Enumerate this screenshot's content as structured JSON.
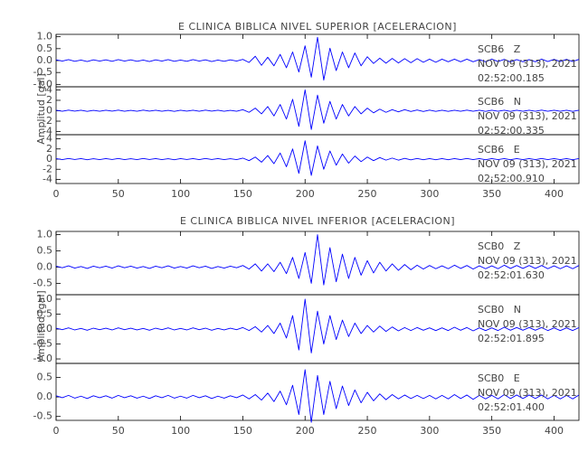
{
  "chart_data": [
    {
      "type": "line",
      "title": "E CLINICA BIBLICA NIVEL SUPERIOR [ACELERACION]",
      "ylabel": "Amplitud [gal]",
      "color": "#0000ff",
      "xlim": [
        0,
        420
      ],
      "xticks": [
        0,
        50,
        100,
        150,
        200,
        250,
        300,
        350,
        400
      ],
      "x": [
        0,
        5,
        10,
        15,
        20,
        25,
        30,
        35,
        40,
        45,
        50,
        55,
        60,
        65,
        70,
        75,
        80,
        85,
        90,
        95,
        100,
        105,
        110,
        115,
        120,
        125,
        130,
        135,
        140,
        145,
        150,
        155,
        160,
        165,
        170,
        175,
        180,
        185,
        190,
        195,
        200,
        205,
        210,
        215,
        220,
        225,
        230,
        235,
        240,
        245,
        250,
        255,
        260,
        265,
        270,
        275,
        280,
        285,
        290,
        295,
        300,
        305,
        310,
        315,
        320,
        325,
        330,
        335,
        340,
        345,
        350,
        355,
        360,
        365,
        370,
        375,
        380,
        385,
        390,
        395,
        400,
        405,
        410,
        415,
        420
      ],
      "panels": [
        {
          "station": "SCB6   Z",
          "date": "NOV 09 (313), 2021",
          "time": "02:52:00.185",
          "ylim": [
            -1.1,
            1.1
          ],
          "yticks": [
            {
              "value": -1,
              "label": "-1.0"
            },
            -0.5,
            {
              "value": 0,
              "label": "0.0"
            },
            0.5,
            {
              "value": 1,
              "label": "1.0"
            }
          ],
          "values": [
            0.03,
            -0.02,
            0.04,
            -0.03,
            0.02,
            -0.04,
            0.03,
            -0.02,
            0.03,
            -0.03,
            0.04,
            -0.02,
            0.03,
            -0.03,
            0.02,
            -0.04,
            0.03,
            -0.02,
            0.04,
            -0.03,
            0.02,
            -0.03,
            0.04,
            -0.02,
            0.03,
            -0.04,
            0.02,
            -0.03,
            0.03,
            -0.02,
            0.05,
            -0.08,
            0.18,
            -0.2,
            0.14,
            -0.22,
            0.26,
            -0.3,
            0.36,
            -0.48,
            0.62,
            -0.7,
            0.98,
            -0.82,
            0.52,
            -0.42,
            0.36,
            -0.3,
            0.32,
            -0.22,
            0.16,
            -0.12,
            0.1,
            -0.11,
            0.09,
            -0.1,
            0.08,
            -0.09,
            0.08,
            -0.07,
            0.06,
            -0.07,
            0.06,
            -0.05,
            0.06,
            -0.05,
            0.06,
            -0.05,
            0.04,
            -0.05,
            0.06,
            -0.04,
            0.05,
            -0.06,
            0.04,
            -0.05,
            0.04,
            -0.05,
            0.06,
            -0.04,
            0.05,
            -0.04,
            0.05,
            -0.04,
            0.05
          ]
        },
        {
          "station": "SCB6   N",
          "date": "NOV 09 (313), 2021",
          "time": "02:52:00.335",
          "ylim": [
            -4.6,
            4.6
          ],
          "yticks": [
            -4,
            -2,
            0,
            2,
            4
          ],
          "values": [
            0.1,
            -0.1,
            0.12,
            -0.08,
            0.1,
            -0.12,
            0.08,
            -0.1,
            0.1,
            -0.08,
            0.12,
            -0.1,
            0.08,
            -0.1,
            0.12,
            -0.08,
            0.1,
            -0.1,
            0.08,
            -0.12,
            0.1,
            -0.08,
            0.1,
            -0.1,
            0.12,
            -0.08,
            0.1,
            -0.1,
            0.08,
            -0.1,
            0.2,
            -0.3,
            0.5,
            -0.6,
            0.8,
            -1.0,
            1.2,
            -1.6,
            2.2,
            -3.0,
            4.0,
            -3.6,
            3.0,
            -2.4,
            1.8,
            -1.6,
            1.2,
            -1.0,
            0.8,
            -0.6,
            0.5,
            -0.4,
            0.3,
            -0.3,
            0.2,
            -0.2,
            0.2,
            -0.15,
            0.15,
            -0.15,
            0.12,
            -0.12,
            0.1,
            -0.12,
            0.1,
            -0.1,
            0.12,
            -0.1,
            0.1,
            -0.12,
            0.1,
            -0.1,
            0.1,
            -0.12,
            0.1,
            -0.1,
            0.1,
            -0.1,
            0.12,
            -0.1,
            0.1,
            -0.1,
            0.1,
            -0.12,
            0.1
          ]
        },
        {
          "station": "SCB6   E",
          "date": "NOV 09 (313), 2021",
          "time": "02:52:00.910",
          "ylim": [
            -4.8,
            4.8
          ],
          "yticks": [
            -4,
            -2,
            0,
            2,
            4
          ],
          "values": [
            0.1,
            -0.1,
            0.12,
            -0.08,
            0.1,
            -0.12,
            0.08,
            -0.1,
            0.1,
            -0.08,
            0.12,
            -0.1,
            0.08,
            -0.1,
            0.12,
            -0.08,
            0.1,
            -0.1,
            0.08,
            -0.12,
            0.1,
            -0.08,
            0.1,
            -0.1,
            0.12,
            -0.08,
            0.1,
            -0.1,
            0.08,
            -0.1,
            0.2,
            -0.3,
            0.4,
            -0.6,
            0.7,
            -0.9,
            1.2,
            -1.5,
            2.0,
            -2.8,
            3.6,
            -3.2,
            2.6,
            -2.0,
            1.6,
            -1.2,
            1.0,
            -0.8,
            0.6,
            -0.5,
            0.4,
            -0.3,
            0.3,
            -0.2,
            0.2,
            -0.2,
            0.15,
            -0.15,
            0.12,
            -0.12,
            0.1,
            -0.12,
            0.1,
            -0.12,
            0.1,
            -0.1,
            0.12,
            -0.1,
            0.1,
            -0.12,
            0.1,
            -0.1,
            0.1,
            -0.12,
            0.1,
            -0.1,
            0.1,
            -0.1,
            0.12,
            -0.1,
            0.1,
            -0.1,
            0.1,
            -0.12,
            0.1
          ]
        }
      ]
    },
    {
      "type": "line",
      "title": "E CLINICA BIBLICA NIVEL INFERIOR [ACELERACION]",
      "ylabel": "Amplitud [gal]",
      "color": "#0000ff",
      "xlim": [
        0,
        420
      ],
      "xticks": [
        0,
        50,
        100,
        150,
        200,
        250,
        300,
        350,
        400
      ],
      "x": [
        0,
        5,
        10,
        15,
        20,
        25,
        30,
        35,
        40,
        45,
        50,
        55,
        60,
        65,
        70,
        75,
        80,
        85,
        90,
        95,
        100,
        105,
        110,
        115,
        120,
        125,
        130,
        135,
        140,
        145,
        150,
        155,
        160,
        165,
        170,
        175,
        180,
        185,
        190,
        195,
        200,
        205,
        210,
        215,
        220,
        225,
        230,
        235,
        240,
        245,
        250,
        255,
        260,
        265,
        270,
        275,
        280,
        285,
        290,
        295,
        300,
        305,
        310,
        315,
        320,
        325,
        330,
        335,
        340,
        345,
        350,
        355,
        360,
        365,
        370,
        375,
        380,
        385,
        390,
        395,
        400,
        405,
        410,
        415,
        420
      ],
      "panels": [
        {
          "station": "SCB0   Z",
          "date": "NOV 09 (313), 2021",
          "time": "02:52:01.630",
          "ylim": [
            -0.85,
            1.1
          ],
          "yticks": [
            -0.5,
            {
              "value": 0,
              "label": "0.0"
            },
            0.5,
            {
              "value": 1,
              "label": "1.0"
            }
          ],
          "values": [
            0.03,
            -0.02,
            0.04,
            -0.03,
            0.02,
            -0.04,
            0.03,
            -0.02,
            0.03,
            -0.03,
            0.04,
            -0.02,
            0.03,
            -0.03,
            0.02,
            -0.04,
            0.03,
            -0.02,
            0.04,
            -0.03,
            0.02,
            -0.03,
            0.04,
            -0.02,
            0.03,
            -0.04,
            0.02,
            -0.03,
            0.03,
            -0.02,
            0.05,
            -0.06,
            0.1,
            -0.12,
            0.1,
            -0.14,
            0.15,
            -0.2,
            0.3,
            -0.35,
            0.45,
            -0.5,
            1.0,
            -0.55,
            0.6,
            -0.45,
            0.4,
            -0.35,
            0.3,
            -0.25,
            0.2,
            -0.18,
            0.15,
            -0.12,
            0.1,
            -0.1,
            0.08,
            -0.08,
            0.06,
            -0.06,
            0.05,
            -0.05,
            0.04,
            -0.05,
            0.06,
            -0.04,
            0.05,
            -0.06,
            0.04,
            -0.05,
            0.04,
            -0.05,
            0.06,
            -0.04,
            0.05,
            -0.04,
            0.05,
            -0.04,
            0.05,
            -0.05,
            0.04,
            -0.05,
            0.04,
            -0.05,
            0.05
          ]
        },
        {
          "station": "SCB0   N",
          "date": "NOV 09 (313), 2021",
          "time": "02:52:01.895",
          "ylim": [
            -1.15,
            1.15
          ],
          "yticks": [
            {
              "value": -1,
              "label": "-1.0"
            },
            -0.5,
            {
              "value": 0,
              "label": "0.0"
            },
            0.5,
            {
              "value": 1,
              "label": "1.0"
            }
          ],
          "values": [
            0.03,
            -0.02,
            0.04,
            -0.03,
            0.02,
            -0.04,
            0.03,
            -0.02,
            0.03,
            -0.03,
            0.04,
            -0.02,
            0.03,
            -0.03,
            0.02,
            -0.04,
            0.03,
            -0.02,
            0.04,
            -0.03,
            0.02,
            -0.03,
            0.04,
            -0.02,
            0.03,
            -0.04,
            0.02,
            -0.03,
            0.03,
            -0.02,
            0.05,
            -0.05,
            0.08,
            -0.1,
            0.12,
            -0.15,
            0.2,
            -0.3,
            0.45,
            -0.7,
            1.0,
            -0.8,
            0.6,
            -0.5,
            0.45,
            -0.35,
            0.3,
            -0.25,
            0.2,
            -0.15,
            0.12,
            -0.1,
            0.1,
            -0.08,
            0.07,
            -0.06,
            0.05,
            -0.05,
            0.05,
            -0.04,
            0.04,
            -0.05,
            0.04,
            -0.05,
            0.06,
            -0.04,
            0.05,
            -0.06,
            0.04,
            -0.05,
            0.04,
            -0.05,
            0.06,
            -0.04,
            0.05,
            -0.04,
            0.05,
            -0.04,
            0.05,
            -0.05,
            0.04,
            -0.05,
            0.04,
            -0.05,
            0.05
          ]
        },
        {
          "station": "SCB0   E",
          "date": "NOV 09 (313), 2021",
          "time": "02:52:01.400",
          "ylim": [
            -0.6,
            0.86
          ],
          "yticks": [
            -0.5,
            {
              "value": 0,
              "label": "0.0"
            },
            0.5
          ],
          "values": [
            0.03,
            -0.02,
            0.04,
            -0.03,
            0.02,
            -0.04,
            0.03,
            -0.02,
            0.03,
            -0.03,
            0.04,
            -0.02,
            0.03,
            -0.03,
            0.02,
            -0.04,
            0.03,
            -0.02,
            0.04,
            -0.03,
            0.02,
            -0.03,
            0.04,
            -0.02,
            0.03,
            -0.04,
            0.02,
            -0.03,
            0.03,
            -0.02,
            0.05,
            -0.05,
            0.06,
            -0.08,
            0.1,
            -0.12,
            0.15,
            -0.2,
            0.3,
            -0.45,
            0.7,
            -0.65,
            0.55,
            -0.45,
            0.4,
            -0.3,
            0.28,
            -0.22,
            0.18,
            -0.15,
            0.12,
            -0.1,
            0.08,
            -0.07,
            0.06,
            -0.05,
            0.05,
            -0.04,
            0.04,
            -0.04,
            0.04,
            -0.05,
            0.04,
            -0.05,
            0.06,
            -0.04,
            0.05,
            -0.06,
            0.04,
            -0.05,
            0.04,
            -0.05,
            0.06,
            -0.04,
            0.05,
            -0.04,
            0.05,
            -0.04,
            0.05,
            -0.05,
            0.04,
            -0.05,
            0.04,
            -0.05,
            0.05
          ]
        }
      ]
    }
  ]
}
